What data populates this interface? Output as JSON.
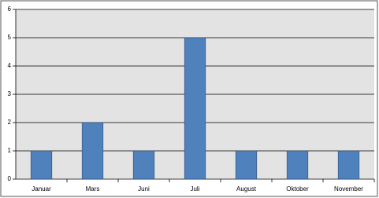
{
  "chart_data": {
    "type": "bar",
    "categories": [
      "Januar",
      "Mars",
      "Juni",
      "Juli",
      "August",
      "Oktober",
      "November"
    ],
    "values": [
      1,
      2,
      1,
      5,
      1,
      1,
      1
    ],
    "color": "#4f81bd",
    "ylim": [
      0,
      6
    ],
    "yticks": [
      0,
      1,
      2,
      3,
      4,
      5,
      6
    ],
    "grid": true
  }
}
